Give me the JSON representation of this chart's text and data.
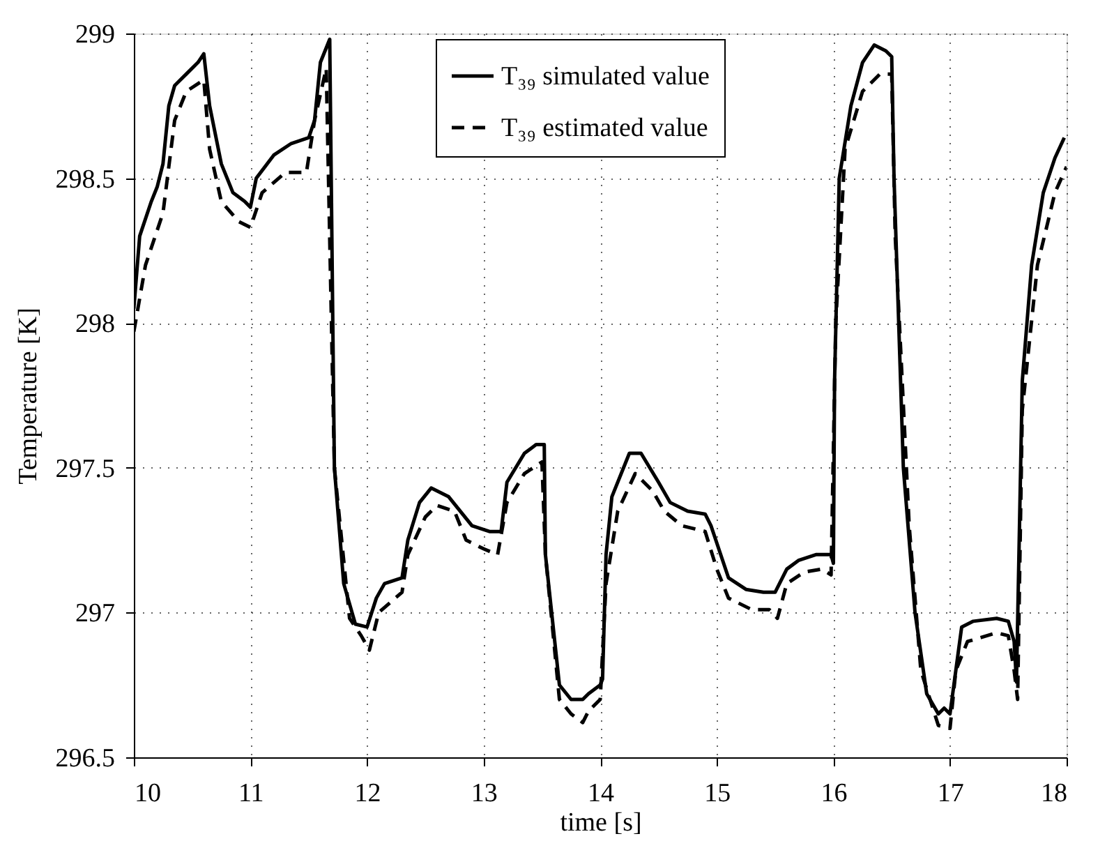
{
  "chart_data": {
    "type": "line",
    "xlabel": "time [s]",
    "ylabel": "Temperature [K]",
    "xlim": [
      10,
      18
    ],
    "ylim": [
      296.5,
      299
    ],
    "xticks": [
      10,
      11,
      12,
      13,
      14,
      15,
      16,
      17,
      18
    ],
    "yticks": [
      296.5,
      297,
      297.5,
      298,
      298.5,
      299
    ],
    "grid": true,
    "legend": "top",
    "marker": "none",
    "series": [
      {
        "name": "T₃₉ simulated value",
        "color": "#000000",
        "line_style": "solid",
        "x": [
          10.0,
          10.05,
          10.15,
          10.2,
          10.25,
          10.3,
          10.35,
          10.45,
          10.55,
          10.6,
          10.65,
          10.75,
          10.85,
          10.95,
          11.0,
          11.05,
          11.2,
          11.35,
          11.5,
          11.55,
          11.6,
          11.68,
          11.72,
          11.8,
          11.9,
          12.0,
          12.08,
          12.15,
          12.3,
          12.35,
          12.45,
          12.55,
          12.7,
          12.8,
          12.9,
          13.05,
          13.15,
          13.2,
          13.35,
          13.45,
          13.52,
          13.53,
          13.65,
          13.75,
          13.85,
          13.9,
          14.0,
          14.02,
          14.05,
          14.1,
          14.25,
          14.35,
          14.5,
          14.6,
          14.75,
          14.9,
          14.95,
          15.1,
          15.25,
          15.4,
          15.5,
          15.6,
          15.7,
          15.85,
          15.98,
          16.0,
          16.01,
          16.05,
          16.15,
          16.25,
          16.35,
          16.45,
          16.5,
          16.52,
          16.6,
          16.7,
          16.8,
          16.9,
          16.95,
          17.0,
          17.05,
          17.1,
          17.2,
          17.4,
          17.5,
          17.55,
          17.57,
          17.62,
          17.7,
          17.8,
          17.9,
          17.98
        ],
        "values": [
          298.05,
          298.3,
          298.42,
          298.47,
          298.55,
          298.75,
          298.82,
          298.86,
          298.9,
          298.93,
          298.75,
          298.55,
          298.45,
          298.42,
          298.4,
          298.5,
          298.58,
          298.62,
          298.64,
          298.7,
          298.9,
          298.98,
          297.5,
          297.1,
          296.96,
          296.95,
          297.05,
          297.1,
          297.12,
          297.25,
          297.38,
          297.43,
          297.4,
          297.35,
          297.3,
          297.28,
          297.28,
          297.45,
          297.55,
          297.58,
          297.58,
          297.2,
          296.75,
          296.7,
          296.7,
          296.72,
          296.75,
          296.77,
          297.2,
          297.4,
          297.55,
          297.55,
          297.45,
          297.38,
          297.35,
          297.34,
          297.3,
          297.12,
          297.08,
          297.07,
          297.07,
          297.15,
          297.18,
          297.2,
          297.2,
          297.17,
          297.8,
          298.5,
          298.75,
          298.9,
          298.96,
          298.94,
          298.92,
          298.5,
          297.5,
          297.0,
          296.72,
          296.65,
          296.67,
          296.65,
          296.8,
          296.95,
          296.97,
          296.98,
          296.97,
          296.9,
          296.76,
          297.8,
          298.2,
          298.45,
          298.57,
          298.64
        ]
      },
      {
        "name": "T₃₉ estimated value",
        "color": "#000000",
        "line_style": "dashed",
        "x": [
          10.0,
          10.1,
          10.25,
          10.35,
          10.45,
          10.6,
          10.65,
          10.75,
          10.9,
          11.0,
          11.1,
          11.3,
          11.48,
          11.55,
          11.65,
          11.72,
          11.85,
          11.95,
          12.02,
          12.1,
          12.3,
          12.35,
          12.5,
          12.6,
          12.75,
          12.85,
          13.0,
          13.12,
          13.2,
          13.35,
          13.5,
          13.53,
          13.65,
          13.75,
          13.85,
          13.9,
          14.0,
          14.05,
          14.15,
          14.3,
          14.45,
          14.55,
          14.7,
          14.9,
          15.0,
          15.1,
          15.3,
          15.45,
          15.52,
          15.6,
          15.75,
          15.9,
          15.98,
          16.02,
          16.1,
          16.25,
          16.4,
          16.5,
          16.53,
          16.65,
          16.75,
          16.9,
          17.0,
          17.05,
          17.15,
          17.4,
          17.5,
          17.55,
          17.58,
          17.62,
          17.75,
          17.9,
          18.0
        ],
        "values": [
          297.97,
          298.2,
          298.38,
          298.7,
          298.8,
          298.84,
          298.6,
          298.42,
          298.35,
          298.33,
          298.45,
          298.52,
          298.52,
          298.7,
          298.88,
          297.5,
          296.98,
          296.92,
          296.87,
          297.0,
          297.07,
          297.2,
          297.33,
          297.37,
          297.35,
          297.25,
          297.22,
          297.2,
          297.38,
          297.48,
          297.52,
          297.2,
          296.7,
          296.65,
          296.62,
          296.66,
          296.7,
          297.1,
          297.35,
          297.48,
          297.42,
          297.35,
          297.3,
          297.28,
          297.15,
          297.05,
          297.01,
          297.01,
          296.98,
          297.1,
          297.14,
          297.15,
          297.13,
          298.0,
          298.6,
          298.8,
          298.86,
          298.86,
          298.3,
          297.3,
          296.8,
          296.61,
          296.6,
          296.8,
          296.9,
          296.93,
          296.92,
          296.8,
          296.7,
          297.7,
          298.2,
          298.45,
          298.54
        ]
      }
    ]
  }
}
